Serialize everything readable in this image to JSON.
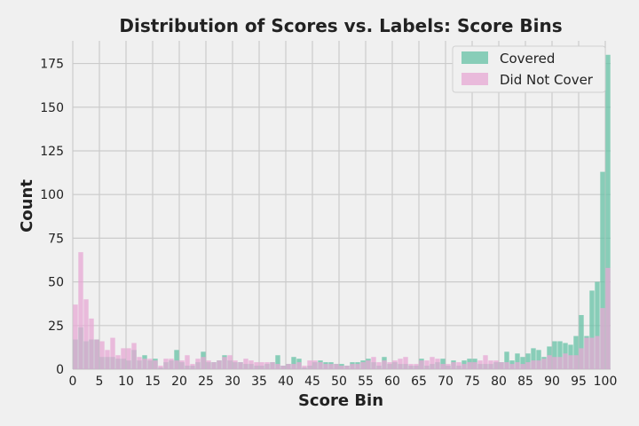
{
  "chart_data": {
    "type": "bar",
    "title": "Distribution of Scores vs. Labels: Score Bins",
    "xlabel": "Score Bin",
    "ylabel": "Count",
    "xlim": [
      0,
      101
    ],
    "ylim": [
      0,
      188
    ],
    "x_ticks": [
      0,
      5,
      10,
      15,
      20,
      25,
      30,
      35,
      40,
      45,
      50,
      55,
      60,
      65,
      70,
      75,
      80,
      85,
      90,
      95,
      100
    ],
    "y_ticks": [
      0,
      25,
      50,
      75,
      100,
      125,
      150,
      175
    ],
    "grid": true,
    "legend_position": "top-right",
    "x": [
      0,
      1,
      2,
      3,
      4,
      5,
      6,
      7,
      8,
      9,
      10,
      11,
      12,
      13,
      14,
      15,
      16,
      17,
      18,
      19,
      20,
      21,
      22,
      23,
      24,
      25,
      26,
      27,
      28,
      29,
      30,
      31,
      32,
      33,
      34,
      35,
      36,
      37,
      38,
      39,
      40,
      41,
      42,
      43,
      44,
      45,
      46,
      47,
      48,
      49,
      50,
      51,
      52,
      53,
      54,
      55,
      56,
      57,
      58,
      59,
      60,
      61,
      62,
      63,
      64,
      65,
      66,
      67,
      68,
      69,
      70,
      71,
      72,
      73,
      74,
      75,
      76,
      77,
      78,
      79,
      80,
      81,
      82,
      83,
      84,
      85,
      86,
      87,
      88,
      89,
      90,
      91,
      92,
      93,
      94,
      95,
      96,
      97,
      98,
      99,
      100
    ],
    "series": [
      {
        "name": "Covered",
        "color": "#66c2a5",
        "values": [
          17,
          24,
          16,
          17,
          17,
          7,
          7,
          7,
          6,
          6,
          5,
          11,
          5,
          8,
          5,
          6,
          1,
          4,
          5,
          11,
          4,
          2,
          2,
          4,
          10,
          4,
          4,
          5,
          8,
          5,
          4,
          4,
          3,
          3,
          2,
          2,
          3,
          4,
          8,
          2,
          3,
          7,
          6,
          1,
          2,
          4,
          5,
          4,
          4,
          3,
          3,
          2,
          4,
          4,
          5,
          6,
          4,
          2,
          7,
          3,
          4,
          3,
          3,
          2,
          2,
          6,
          2,
          3,
          4,
          6,
          2,
          5,
          2,
          5,
          6,
          6,
          3,
          3,
          3,
          4,
          4,
          10,
          5,
          9,
          7,
          9,
          12,
          11,
          7,
          13,
          16,
          16,
          15,
          14,
          19,
          31,
          19,
          45,
          50,
          113,
          180
        ]
      },
      {
        "name": "Did Not Cover",
        "color": "#e7a8d4",
        "values": [
          37,
          67,
          40,
          29,
          17,
          16,
          11,
          18,
          8,
          12,
          12,
          15,
          7,
          6,
          6,
          5,
          2,
          6,
          6,
          5,
          5,
          8,
          3,
          6,
          7,
          5,
          4,
          5,
          7,
          8,
          5,
          4,
          6,
          5,
          4,
          4,
          4,
          4,
          3,
          2,
          3,
          3,
          4,
          2,
          5,
          5,
          4,
          3,
          3,
          3,
          2,
          2,
          3,
          3,
          4,
          5,
          7,
          4,
          5,
          4,
          5,
          6,
          7,
          3,
          3,
          5,
          5,
          7,
          6,
          3,
          3,
          4,
          4,
          3,
          4,
          4,
          5,
          8,
          5,
          5,
          4,
          4,
          3,
          4,
          3,
          4,
          5,
          5,
          6,
          8,
          7,
          7,
          9,
          8,
          8,
          12,
          18,
          18,
          19,
          35,
          58
        ]
      }
    ]
  }
}
